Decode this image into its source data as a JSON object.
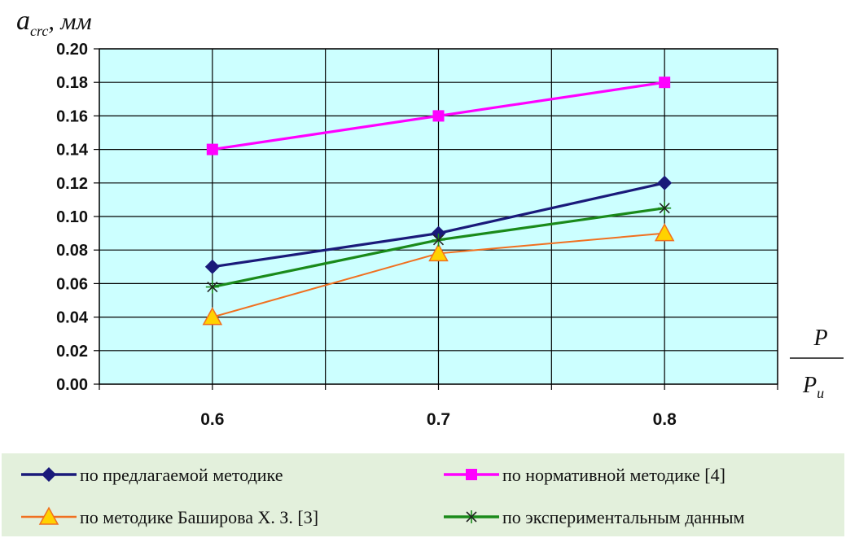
{
  "chart_data": {
    "type": "line",
    "ylabel": {
      "main": "a",
      "sub": "crc",
      "unit": ", мм"
    },
    "xlabel": {
      "numerator": "P",
      "denominator": "P",
      "denominator_sub": "u"
    },
    "x": [
      0.6,
      0.7,
      0.8
    ],
    "x_tick_labels": [
      "0.6",
      "0.7",
      "0.8"
    ],
    "xlim": [
      0.55,
      0.85
    ],
    "ylim": [
      0.0,
      0.2
    ],
    "y_ticks": [
      "0.00",
      "0.02",
      "0.04",
      "0.06",
      "0.08",
      "0.10",
      "0.12",
      "0.14",
      "0.16",
      "0.18",
      "0.20"
    ],
    "grid": true,
    "plot_background": "#ccffff",
    "legend_background": "#e3f0dc",
    "legend_position": "bottom",
    "series": [
      {
        "name": "по предлагаемой методике",
        "values": [
          0.07,
          0.09,
          0.12
        ],
        "color": "#1a1a7a",
        "marker": "diamond"
      },
      {
        "name": "по нормативной методике [4]",
        "values": [
          0.14,
          0.16,
          0.18
        ],
        "color": "#ff00ff",
        "marker": "square"
      },
      {
        "name": "по методике Баширова Х. З. [3]",
        "values": [
          0.04,
          0.078,
          0.09
        ],
        "color": "#f07020",
        "marker": "triangle",
        "marker_fill": "#ffd200"
      },
      {
        "name": "по экспериментальным данным",
        "values": [
          0.058,
          0.086,
          0.105
        ],
        "color": "#1a8a1a",
        "marker": "star"
      }
    ]
  }
}
